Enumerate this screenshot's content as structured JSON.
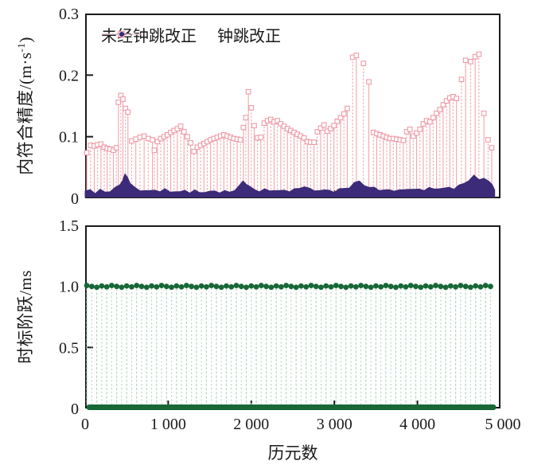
{
  "figure_title": "",
  "colors": {
    "background": "#FFFFFF",
    "axis": "#1A1A1A",
    "uncorrected_stem": "#F2A6AF",
    "uncorrected_marker": "#EE9AA6",
    "corrected_band": "#3C2B78",
    "legend_dotted_line": "#C5C9E5",
    "legend_dot": "#2E2A7B",
    "green_dot": "#176737",
    "green_stem": "#B7D6C2"
  },
  "chart_data": [
    {
      "type": "scatter",
      "title": "",
      "ylabel": "内符合精度/(m·s-1)",
      "ylabel_parts": {
        "prefix": "内符合精度/(m·s",
        "sup": "-1",
        "suffix": ")"
      },
      "xlabel": "",
      "xlim": [
        0,
        5000
      ],
      "ylim": [
        0,
        0.3
      ],
      "grid": false,
      "legend_position": "top-inside",
      "yticks": [
        {
          "v": 0,
          "label": "0"
        },
        {
          "v": 0.1,
          "label": "0.1"
        },
        {
          "v": 0.2,
          "label": "0.2"
        },
        {
          "v": 0.3,
          "label": "0.3"
        }
      ],
      "xticks_values": [
        1000,
        2000,
        3000,
        4000
      ],
      "series": [
        {
          "name": "未经钟跳改正",
          "style": "stem-open-square",
          "points": [
            [
              20,
              0.074
            ],
            [
              65,
              0.086
            ],
            [
              110,
              0.085
            ],
            [
              150,
              0.087
            ],
            [
              190,
              0.088
            ],
            [
              230,
              0.083
            ],
            [
              265,
              0.081
            ],
            [
              300,
              0.08
            ],
            [
              340,
              0.078
            ],
            [
              375,
              0.082
            ],
            [
              400,
              0.156
            ],
            [
              430,
              0.167
            ],
            [
              455,
              0.161
            ],
            [
              485,
              0.146
            ],
            [
              515,
              0.14
            ],
            [
              560,
              0.093
            ],
            [
              610,
              0.096
            ],
            [
              660,
              0.099
            ],
            [
              710,
              0.101
            ],
            [
              760,
              0.097
            ],
            [
              810,
              0.095
            ],
            [
              833,
              0.078
            ],
            [
              870,
              0.092
            ],
            [
              910,
              0.097
            ],
            [
              950,
              0.1
            ],
            [
              990,
              0.103
            ],
            [
              1030,
              0.107
            ],
            [
              1070,
              0.11
            ],
            [
              1110,
              0.113
            ],
            [
              1150,
              0.117
            ],
            [
              1190,
              0.108
            ],
            [
              1230,
              0.1
            ],
            [
              1270,
              0.09
            ],
            [
              1310,
              0.076
            ],
            [
              1350,
              0.083
            ],
            [
              1390,
              0.086
            ],
            [
              1430,
              0.089
            ],
            [
              1470,
              0.092
            ],
            [
              1510,
              0.095
            ],
            [
              1550,
              0.097
            ],
            [
              1590,
              0.099
            ],
            [
              1630,
              0.101
            ],
            [
              1670,
              0.103
            ],
            [
              1710,
              0.101
            ],
            [
              1750,
              0.099
            ],
            [
              1790,
              0.097
            ],
            [
              1830,
              0.096
            ],
            [
              1870,
              0.095
            ],
            [
              1905,
              0.115
            ],
            [
              1935,
              0.131
            ],
            [
              1965,
              0.173
            ],
            [
              2000,
              0.147
            ],
            [
              2035,
              0.118
            ],
            [
              2075,
              0.098
            ],
            [
              2115,
              0.099
            ],
            [
              2155,
              0.122
            ],
            [
              2195,
              0.126
            ],
            [
              2235,
              0.128
            ],
            [
              2275,
              0.124
            ],
            [
              2315,
              0.126
            ],
            [
              2355,
              0.121
            ],
            [
              2395,
              0.117
            ],
            [
              2435,
              0.113
            ],
            [
              2475,
              0.11
            ],
            [
              2515,
              0.107
            ],
            [
              2555,
              0.104
            ],
            [
              2595,
              0.101
            ],
            [
              2635,
              0.098
            ],
            [
              2675,
              0.092
            ],
            [
              2715,
              0.091
            ],
            [
              2755,
              0.091
            ],
            [
              2795,
              0.108
            ],
            [
              2835,
              0.114
            ],
            [
              2875,
              0.119
            ],
            [
              2915,
              0.109
            ],
            [
              2955,
              0.113
            ],
            [
              2995,
              0.118
            ],
            [
              3035,
              0.125
            ],
            [
              3075,
              0.131
            ],
            [
              3115,
              0.137
            ],
            [
              3155,
              0.146
            ],
            [
              3220,
              0.229
            ],
            [
              3265,
              0.232
            ],
            [
              3350,
              0.219
            ],
            [
              3415,
              0.189
            ],
            [
              3470,
              0.107
            ],
            [
              3510,
              0.105
            ],
            [
              3550,
              0.103
            ],
            [
              3590,
              0.101
            ],
            [
              3630,
              0.099
            ],
            [
              3670,
              0.097
            ],
            [
              3710,
              0.097
            ],
            [
              3750,
              0.096
            ],
            [
              3790,
              0.095
            ],
            [
              3830,
              0.094
            ],
            [
              3870,
              0.108
            ],
            [
              3910,
              0.112
            ],
            [
              3950,
              0.101
            ],
            [
              3990,
              0.106
            ],
            [
              4030,
              0.112
            ],
            [
              4070,
              0.121
            ],
            [
              4110,
              0.126
            ],
            [
              4150,
              0.124
            ],
            [
              4190,
              0.131
            ],
            [
              4230,
              0.138
            ],
            [
              4270,
              0.144
            ],
            [
              4310,
              0.152
            ],
            [
              4350,
              0.158
            ],
            [
              4390,
              0.163
            ],
            [
              4430,
              0.165
            ],
            [
              4470,
              0.162
            ],
            [
              4530,
              0.193
            ],
            [
              4580,
              0.224
            ],
            [
              4640,
              0.222
            ],
            [
              4695,
              0.23
            ],
            [
              4740,
              0.234
            ],
            [
              4800,
              0.138
            ],
            [
              4850,
              0.095
            ],
            [
              4895,
              0.082
            ]
          ]
        },
        {
          "name": "钟跳改正",
          "style": "dense-band",
          "points": [
            [
              0,
              0.01
            ],
            [
              60,
              0.014
            ],
            [
              120,
              0.009
            ],
            [
              180,
              0.013
            ],
            [
              240,
              0.01
            ],
            [
              300,
              0.012
            ],
            [
              360,
              0.016
            ],
            [
              420,
              0.022
            ],
            [
              450,
              0.03
            ],
            [
              480,
              0.038
            ],
            [
              510,
              0.034
            ],
            [
              540,
              0.026
            ],
            [
              600,
              0.016
            ],
            [
              660,
              0.012
            ],
            [
              720,
              0.014
            ],
            [
              780,
              0.011
            ],
            [
              840,
              0.013
            ],
            [
              900,
              0.012
            ],
            [
              960,
              0.014
            ],
            [
              1020,
              0.01
            ],
            [
              1080,
              0.012
            ],
            [
              1140,
              0.009
            ],
            [
              1200,
              0.013
            ],
            [
              1260,
              0.01
            ],
            [
              1320,
              0.012
            ],
            [
              1380,
              0.009
            ],
            [
              1440,
              0.011
            ],
            [
              1500,
              0.01
            ],
            [
              1560,
              0.012
            ],
            [
              1620,
              0.01
            ],
            [
              1680,
              0.011
            ],
            [
              1740,
              0.01
            ],
            [
              1800,
              0.014
            ],
            [
              1860,
              0.02
            ],
            [
              1900,
              0.028
            ],
            [
              1940,
              0.024
            ],
            [
              1980,
              0.018
            ],
            [
              2040,
              0.014
            ],
            [
              2100,
              0.012
            ],
            [
              2160,
              0.014
            ],
            [
              2220,
              0.012
            ],
            [
              2280,
              0.014
            ],
            [
              2340,
              0.011
            ],
            [
              2400,
              0.013
            ],
            [
              2460,
              0.012
            ],
            [
              2520,
              0.014
            ],
            [
              2580,
              0.016
            ],
            [
              2640,
              0.02
            ],
            [
              2700,
              0.015
            ],
            [
              2760,
              0.012
            ],
            [
              2820,
              0.014
            ],
            [
              2880,
              0.012
            ],
            [
              2940,
              0.013
            ],
            [
              3000,
              0.011
            ],
            [
              3060,
              0.014
            ],
            [
              3120,
              0.016
            ],
            [
              3180,
              0.018
            ],
            [
              3240,
              0.024
            ],
            [
              3300,
              0.028
            ],
            [
              3360,
              0.022
            ],
            [
              3420,
              0.016
            ],
            [
              3480,
              0.018
            ],
            [
              3540,
              0.014
            ],
            [
              3600,
              0.012
            ],
            [
              3660,
              0.014
            ],
            [
              3720,
              0.013
            ],
            [
              3780,
              0.012
            ],
            [
              3840,
              0.014
            ],
            [
              3900,
              0.016
            ],
            [
              3960,
              0.013
            ],
            [
              4020,
              0.015
            ],
            [
              4080,
              0.014
            ],
            [
              4140,
              0.016
            ],
            [
              4200,
              0.015
            ],
            [
              4260,
              0.017
            ],
            [
              4320,
              0.015
            ],
            [
              4380,
              0.018
            ],
            [
              4440,
              0.016
            ],
            [
              4500,
              0.02
            ],
            [
              4560,
              0.024
            ],
            [
              4620,
              0.03
            ],
            [
              4680,
              0.036
            ],
            [
              4740,
              0.03
            ],
            [
              4800,
              0.034
            ],
            [
              4860,
              0.026
            ],
            [
              4900,
              0.022
            ],
            [
              4930,
              0.015
            ]
          ]
        }
      ]
    },
    {
      "type": "stem",
      "title": "",
      "ylabel": "时标阶跃/ms",
      "xlabel": "历元数",
      "xlim": [
        0,
        5000
      ],
      "ylim": [
        0,
        1.5
      ],
      "grid": false,
      "yticks": [
        {
          "v": 0,
          "label": "0"
        },
        {
          "v": 0.5,
          "label": "0.5"
        },
        {
          "v": 1.0,
          "label": "1.0"
        },
        {
          "v": 1.5,
          "label": "1.5"
        }
      ],
      "xticks": [
        {
          "v": 0,
          "label": "0"
        },
        {
          "v": 1000,
          "label": "1 000"
        },
        {
          "v": 2000,
          "label": "2 000"
        },
        {
          "v": 3000,
          "label": "3 000"
        },
        {
          "v": 4000,
          "label": "4 000"
        },
        {
          "v": 5000,
          "label": "5 000"
        }
      ],
      "series": [
        {
          "name": "时标阶跃",
          "style": "stem-dot",
          "value": 1.0,
          "baseline_value": 0,
          "x_start": 20,
          "x_step": 60,
          "x_count": 82,
          "baseline_x_end": 4915
        }
      ]
    }
  ]
}
